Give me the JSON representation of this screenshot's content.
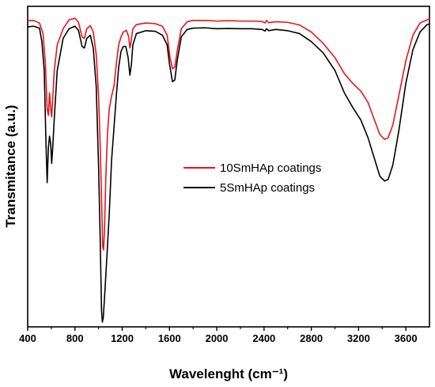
{
  "chart_data": {
    "type": "line",
    "xlabel": "Wavelenght (cm⁻¹)",
    "ylabel": "Transmitance (a.u.)",
    "xlim": [
      400,
      3800
    ],
    "ylim": [
      0,
      100
    ],
    "xticks": [
      "400",
      "800",
      "1200",
      "1600",
      "2000",
      "2400",
      "2800",
      "3200",
      "3600"
    ],
    "grid": false,
    "legend_position": "center-right",
    "series": [
      {
        "name": "10SmHAp coatings",
        "color": "#e8141b",
        "points": [
          [
            400,
            95.5
          ],
          [
            450,
            95.6
          ],
          [
            500,
            94.8
          ],
          [
            530,
            91.5
          ],
          [
            550,
            82
          ],
          [
            565,
            68
          ],
          [
            575,
            66
          ],
          [
            585,
            73
          ],
          [
            595,
            68
          ],
          [
            603,
            65.5
          ],
          [
            612,
            71
          ],
          [
            625,
            80
          ],
          [
            650,
            88
          ],
          [
            700,
            93
          ],
          [
            750,
            95.8
          ],
          [
            800,
            96.3
          ],
          [
            830,
            95
          ],
          [
            860,
            90.5
          ],
          [
            880,
            90
          ],
          [
            900,
            93
          ],
          [
            930,
            94
          ],
          [
            955,
            92
          ],
          [
            980,
            85
          ],
          [
            1000,
            72
          ],
          [
            1015,
            55
          ],
          [
            1025,
            40
          ],
          [
            1035,
            25
          ],
          [
            1042,
            24
          ],
          [
            1050,
            30
          ],
          [
            1060,
            45
          ],
          [
            1075,
            60
          ],
          [
            1090,
            68
          ],
          [
            1110,
            72
          ],
          [
            1130,
            75
          ],
          [
            1150,
            82
          ],
          [
            1170,
            88
          ],
          [
            1190,
            90.5
          ],
          [
            1210,
            92
          ],
          [
            1235,
            92.5
          ],
          [
            1255,
            90.5
          ],
          [
            1265,
            87
          ],
          [
            1275,
            89
          ],
          [
            1290,
            93
          ],
          [
            1320,
            94.3
          ],
          [
            1400,
            94.8
          ],
          [
            1480,
            94.6
          ],
          [
            1540,
            93.8
          ],
          [
            1580,
            91
          ],
          [
            1605,
            84
          ],
          [
            1625,
            80.5
          ],
          [
            1645,
            81
          ],
          [
            1665,
            86
          ],
          [
            1700,
            93
          ],
          [
            1750,
            95.2
          ],
          [
            1800,
            95.6
          ],
          [
            1900,
            95.6
          ],
          [
            2000,
            95.4
          ],
          [
            2100,
            95.5
          ],
          [
            2200,
            95.4
          ],
          [
            2300,
            95.4
          ],
          [
            2380,
            95.3
          ],
          [
            2410,
            94.8
          ],
          [
            2420,
            95.6
          ],
          [
            2440,
            94.9
          ],
          [
            2500,
            95.2
          ],
          [
            2600,
            95
          ],
          [
            2700,
            94.2
          ],
          [
            2800,
            92
          ],
          [
            2900,
            88.5
          ],
          [
            3000,
            84
          ],
          [
            3080,
            79
          ],
          [
            3150,
            76
          ],
          [
            3220,
            73.5
          ],
          [
            3280,
            70
          ],
          [
            3330,
            65
          ],
          [
            3380,
            60
          ],
          [
            3420,
            58.5
          ],
          [
            3450,
            59
          ],
          [
            3490,
            63
          ],
          [
            3540,
            72
          ],
          [
            3600,
            83
          ],
          [
            3660,
            91
          ],
          [
            3720,
            94.8
          ],
          [
            3780,
            95.8
          ],
          [
            3800,
            96
          ]
        ]
      },
      {
        "name": "5SmHAp coatings",
        "color": "#000000",
        "points": [
          [
            400,
            93.6
          ],
          [
            450,
            93.8
          ],
          [
            500,
            93.2
          ],
          [
            520,
            89
          ],
          [
            540,
            80
          ],
          [
            555,
            57
          ],
          [
            565,
            45
          ],
          [
            575,
            56
          ],
          [
            585,
            59.5
          ],
          [
            595,
            57
          ],
          [
            603,
            51
          ],
          [
            612,
            56
          ],
          [
            625,
            65
          ],
          [
            650,
            80
          ],
          [
            700,
            90
          ],
          [
            750,
            93
          ],
          [
            800,
            93.8
          ],
          [
            830,
            92.5
          ],
          [
            860,
            87.5
          ],
          [
            880,
            87
          ],
          [
            900,
            90
          ],
          [
            930,
            91
          ],
          [
            955,
            87
          ],
          [
            980,
            75
          ],
          [
            1000,
            50
          ],
          [
            1015,
            25
          ],
          [
            1025,
            5
          ],
          [
            1032,
            1.5
          ],
          [
            1040,
            3
          ],
          [
            1055,
            12
          ],
          [
            1075,
            25
          ],
          [
            1090,
            35
          ],
          [
            1110,
            52
          ],
          [
            1130,
            62
          ],
          [
            1150,
            72
          ],
          [
            1170,
            81
          ],
          [
            1190,
            86
          ],
          [
            1210,
            87.5
          ],
          [
            1230,
            87.5
          ],
          [
            1250,
            84
          ],
          [
            1265,
            78.5
          ],
          [
            1278,
            82
          ],
          [
            1290,
            88
          ],
          [
            1320,
            91.5
          ],
          [
            1400,
            92.4
          ],
          [
            1480,
            92.2
          ],
          [
            1540,
            91
          ],
          [
            1580,
            88
          ],
          [
            1600,
            82
          ],
          [
            1625,
            76.5
          ],
          [
            1645,
            77
          ],
          [
            1665,
            83
          ],
          [
            1700,
            90.5
          ],
          [
            1750,
            92.8
          ],
          [
            1800,
            93.2
          ],
          [
            1900,
            93.3
          ],
          [
            2000,
            93
          ],
          [
            2100,
            93.1
          ],
          [
            2200,
            93
          ],
          [
            2300,
            93
          ],
          [
            2380,
            92.8
          ],
          [
            2410,
            92.3
          ],
          [
            2420,
            93
          ],
          [
            2440,
            92.4
          ],
          [
            2500,
            92.8
          ],
          [
            2600,
            92.4
          ],
          [
            2700,
            91.5
          ],
          [
            2800,
            89
          ],
          [
            2900,
            85.5
          ],
          [
            3000,
            80
          ],
          [
            3080,
            73
          ],
          [
            3150,
            68.5
          ],
          [
            3220,
            64.5
          ],
          [
            3280,
            59
          ],
          [
            3330,
            53
          ],
          [
            3380,
            47
          ],
          [
            3420,
            45.5
          ],
          [
            3450,
            46
          ],
          [
            3490,
            50.5
          ],
          [
            3540,
            61
          ],
          [
            3600,
            76
          ],
          [
            3660,
            86.5
          ],
          [
            3720,
            92
          ],
          [
            3780,
            94.3
          ],
          [
            3800,
            94.5
          ]
        ]
      }
    ]
  }
}
